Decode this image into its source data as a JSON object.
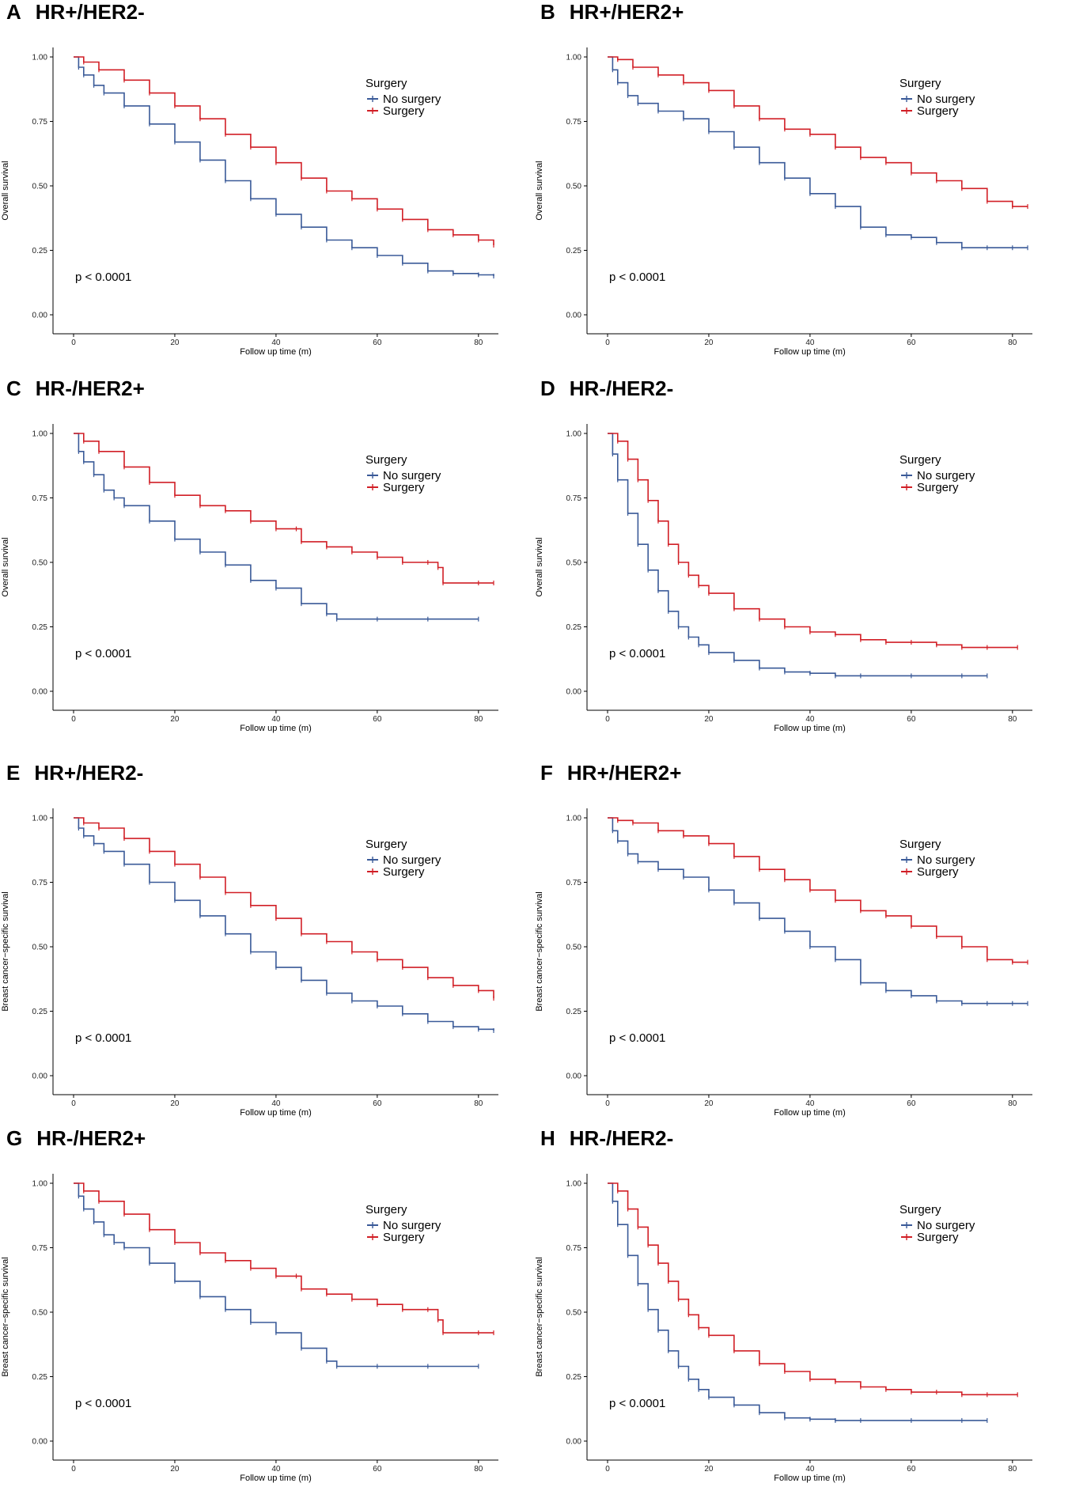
{
  "legend_title": "Surgery",
  "x_axis_label": "Follow up time (m)",
  "colors": {
    "no_surgery": "#3a5a98",
    "surgery": "#d11f26"
  },
  "chart_data": [
    {
      "letter": "A",
      "title": "HR+/HER2-",
      "type": "line",
      "ylabel": "Overall survival",
      "xlabel": "Follow up time (m)",
      "xlim": [
        0,
        83
      ],
      "ylim": [
        0,
        1
      ],
      "xticks": [
        0,
        20,
        40,
        60,
        80
      ],
      "yticks": [
        "0.00",
        "0.25",
        "0.50",
        "0.75",
        "1.00"
      ],
      "pvalue": "p < 0.0001",
      "legend_position": "upper-right",
      "series": [
        {
          "name": "No surgery",
          "x": [
            0,
            1,
            2,
            4,
            6,
            10,
            15,
            20,
            25,
            30,
            35,
            40,
            45,
            50,
            55,
            60,
            65,
            70,
            75,
            80,
            83
          ],
          "y": [
            1.0,
            0.96,
            0.93,
            0.89,
            0.86,
            0.81,
            0.74,
            0.67,
            0.6,
            0.52,
            0.45,
            0.39,
            0.34,
            0.29,
            0.26,
            0.23,
            0.2,
            0.17,
            0.16,
            0.155,
            0.15
          ]
        },
        {
          "name": "Surgery",
          "x": [
            0,
            2,
            5,
            10,
            15,
            20,
            25,
            30,
            35,
            40,
            45,
            50,
            55,
            60,
            65,
            70,
            75,
            80,
            83
          ],
          "y": [
            1.0,
            0.98,
            0.95,
            0.91,
            0.86,
            0.81,
            0.76,
            0.7,
            0.65,
            0.59,
            0.53,
            0.48,
            0.45,
            0.41,
            0.37,
            0.33,
            0.31,
            0.29,
            0.27
          ]
        }
      ]
    },
    {
      "letter": "B",
      "title": "HR+/HER2+",
      "type": "line",
      "ylabel": "Overall survival",
      "xlabel": "Follow up time (m)",
      "xlim": [
        0,
        83
      ],
      "ylim": [
        0,
        1
      ],
      "xticks": [
        0,
        20,
        40,
        60,
        80
      ],
      "yticks": [
        "0.00",
        "0.25",
        "0.50",
        "0.75",
        "1.00"
      ],
      "pvalue": "p < 0.0001",
      "legend_position": "upper-right",
      "series": [
        {
          "name": "No surgery",
          "x": [
            0,
            1,
            2,
            4,
            6,
            10,
            15,
            20,
            25,
            30,
            35,
            40,
            45,
            50,
            55,
            60,
            65,
            70,
            75,
            80,
            83
          ],
          "y": [
            1.0,
            0.95,
            0.9,
            0.85,
            0.82,
            0.79,
            0.76,
            0.71,
            0.65,
            0.59,
            0.53,
            0.47,
            0.42,
            0.34,
            0.31,
            0.3,
            0.28,
            0.26,
            0.26,
            0.26,
            0.26
          ]
        },
        {
          "name": "Surgery",
          "x": [
            0,
            2,
            5,
            10,
            15,
            20,
            25,
            30,
            35,
            40,
            45,
            50,
            55,
            60,
            65,
            70,
            75,
            80,
            83
          ],
          "y": [
            1.0,
            0.99,
            0.96,
            0.93,
            0.9,
            0.87,
            0.81,
            0.76,
            0.72,
            0.7,
            0.65,
            0.61,
            0.59,
            0.55,
            0.52,
            0.49,
            0.44,
            0.42,
            0.42
          ]
        }
      ]
    },
    {
      "letter": "C",
      "title": "HR-/HER2+",
      "type": "line",
      "ylabel": "Overall survival",
      "xlabel": "Follow up time (m)",
      "xlim": [
        0,
        83
      ],
      "ylim": [
        0,
        1
      ],
      "xticks": [
        0,
        20,
        40,
        60,
        80
      ],
      "yticks": [
        "0.00",
        "0.25",
        "0.50",
        "0.75",
        "1.00"
      ],
      "pvalue": "p < 0.0001",
      "legend_position": "upper-right",
      "series": [
        {
          "name": "No surgery",
          "x": [
            0,
            1,
            2,
            4,
            6,
            8,
            10,
            15,
            20,
            25,
            30,
            35,
            40,
            45,
            50,
            52,
            60,
            70,
            80
          ],
          "y": [
            1.0,
            0.93,
            0.89,
            0.84,
            0.78,
            0.75,
            0.72,
            0.66,
            0.59,
            0.54,
            0.49,
            0.43,
            0.4,
            0.34,
            0.3,
            0.28,
            0.28,
            0.28,
            0.28
          ]
        },
        {
          "name": "Surgery",
          "x": [
            0,
            2,
            5,
            10,
            15,
            20,
            25,
            30,
            35,
            40,
            44,
            45,
            50,
            55,
            60,
            65,
            70,
            72,
            73,
            80,
            83
          ],
          "y": [
            1.0,
            0.97,
            0.93,
            0.87,
            0.81,
            0.76,
            0.72,
            0.7,
            0.66,
            0.63,
            0.63,
            0.58,
            0.56,
            0.54,
            0.52,
            0.5,
            0.5,
            0.48,
            0.42,
            0.42,
            0.42
          ]
        }
      ]
    },
    {
      "letter": "D",
      "title": "HR-/HER2-",
      "type": "line",
      "ylabel": "Overall survival",
      "xlabel": "Follow up time (m)",
      "xlim": [
        0,
        83
      ],
      "ylim": [
        0,
        1
      ],
      "xticks": [
        0,
        20,
        40,
        60,
        80
      ],
      "yticks": [
        "0.00",
        "0.25",
        "0.50",
        "0.75",
        "1.00"
      ],
      "pvalue": "p < 0.0001",
      "legend_position": "upper-right",
      "series": [
        {
          "name": "No surgery",
          "x": [
            0,
            1,
            2,
            4,
            6,
            8,
            10,
            12,
            14,
            16,
            18,
            20,
            25,
            30,
            35,
            40,
            45,
            50,
            60,
            70,
            75
          ],
          "y": [
            1.0,
            0.92,
            0.82,
            0.69,
            0.57,
            0.47,
            0.39,
            0.31,
            0.25,
            0.21,
            0.18,
            0.15,
            0.12,
            0.09,
            0.075,
            0.07,
            0.06,
            0.06,
            0.06,
            0.06,
            0.06
          ]
        },
        {
          "name": "Surgery",
          "x": [
            0,
            2,
            4,
            6,
            8,
            10,
            12,
            14,
            16,
            18,
            20,
            25,
            30,
            35,
            40,
            45,
            50,
            55,
            60,
            65,
            70,
            75,
            81
          ],
          "y": [
            1.0,
            0.97,
            0.9,
            0.82,
            0.74,
            0.66,
            0.57,
            0.5,
            0.45,
            0.41,
            0.38,
            0.32,
            0.28,
            0.25,
            0.23,
            0.22,
            0.2,
            0.19,
            0.19,
            0.18,
            0.17,
            0.17,
            0.17
          ]
        }
      ]
    },
    {
      "letter": "E",
      "title": "HR+/HER2-",
      "type": "line",
      "ylabel": "Breast cancer−specific survival",
      "xlabel": "Follow up time (m)",
      "xlim": [
        0,
        83
      ],
      "ylim": [
        0,
        1
      ],
      "xticks": [
        0,
        20,
        40,
        60,
        80
      ],
      "yticks": [
        "0.00",
        "0.25",
        "0.50",
        "0.75",
        "1.00"
      ],
      "pvalue": "p < 0.0001",
      "legend_position": "upper-right",
      "series": [
        {
          "name": "No surgery",
          "x": [
            0,
            1,
            2,
            4,
            6,
            10,
            15,
            20,
            25,
            30,
            35,
            40,
            45,
            50,
            55,
            60,
            65,
            70,
            75,
            80,
            83
          ],
          "y": [
            1.0,
            0.96,
            0.93,
            0.9,
            0.87,
            0.82,
            0.75,
            0.68,
            0.62,
            0.55,
            0.48,
            0.42,
            0.37,
            0.32,
            0.29,
            0.27,
            0.24,
            0.21,
            0.19,
            0.18,
            0.175
          ]
        },
        {
          "name": "Surgery",
          "x": [
            0,
            2,
            5,
            10,
            15,
            20,
            25,
            30,
            35,
            40,
            45,
            50,
            55,
            60,
            65,
            70,
            75,
            80,
            83
          ],
          "y": [
            1.0,
            0.98,
            0.96,
            0.92,
            0.87,
            0.82,
            0.77,
            0.71,
            0.66,
            0.61,
            0.55,
            0.52,
            0.48,
            0.45,
            0.42,
            0.38,
            0.35,
            0.33,
            0.3
          ]
        }
      ]
    },
    {
      "letter": "F",
      "title": "HR+/HER2+",
      "type": "line",
      "ylabel": "Breast cancer−specific survival",
      "xlabel": "Follow up time (m)",
      "xlim": [
        0,
        83
      ],
      "ylim": [
        0,
        1
      ],
      "xticks": [
        0,
        20,
        40,
        60,
        80
      ],
      "yticks": [
        "0.00",
        "0.25",
        "0.50",
        "0.75",
        "1.00"
      ],
      "pvalue": "p < 0.0001",
      "legend_position": "upper-right",
      "series": [
        {
          "name": "No surgery",
          "x": [
            0,
            1,
            2,
            4,
            6,
            10,
            15,
            20,
            25,
            30,
            35,
            40,
            45,
            50,
            55,
            60,
            65,
            70,
            75,
            80,
            83
          ],
          "y": [
            1.0,
            0.95,
            0.91,
            0.86,
            0.83,
            0.8,
            0.77,
            0.72,
            0.67,
            0.61,
            0.56,
            0.5,
            0.45,
            0.36,
            0.33,
            0.31,
            0.29,
            0.28,
            0.28,
            0.28,
            0.28
          ]
        },
        {
          "name": "Surgery",
          "x": [
            0,
            2,
            5,
            10,
            15,
            20,
            25,
            30,
            35,
            40,
            45,
            50,
            55,
            60,
            65,
            70,
            75,
            80,
            83
          ],
          "y": [
            1.0,
            0.99,
            0.98,
            0.95,
            0.93,
            0.9,
            0.85,
            0.8,
            0.76,
            0.72,
            0.68,
            0.64,
            0.62,
            0.58,
            0.54,
            0.5,
            0.45,
            0.44,
            0.44
          ]
        }
      ]
    },
    {
      "letter": "G",
      "title": "HR-/HER2+",
      "type": "line",
      "ylabel": "Breast cancer−specific survival",
      "xlabel": "Follow up time (m)",
      "xlim": [
        0,
        83
      ],
      "ylim": [
        0,
        1
      ],
      "xticks": [
        0,
        20,
        40,
        60,
        80
      ],
      "yticks": [
        "0.00",
        "0.25",
        "0.50",
        "0.75",
        "1.00"
      ],
      "pvalue": "p < 0.0001",
      "legend_position": "upper-right",
      "series": [
        {
          "name": "No surgery",
          "x": [
            0,
            1,
            2,
            4,
            6,
            8,
            10,
            15,
            20,
            25,
            30,
            35,
            40,
            45,
            50,
            52,
            60,
            70,
            80
          ],
          "y": [
            1.0,
            0.95,
            0.9,
            0.85,
            0.8,
            0.77,
            0.75,
            0.69,
            0.62,
            0.56,
            0.51,
            0.46,
            0.42,
            0.36,
            0.31,
            0.29,
            0.29,
            0.29,
            0.29
          ]
        },
        {
          "name": "Surgery",
          "x": [
            0,
            2,
            5,
            10,
            15,
            20,
            25,
            30,
            35,
            40,
            44,
            45,
            50,
            55,
            60,
            65,
            70,
            72,
            73,
            80,
            83
          ],
          "y": [
            1.0,
            0.97,
            0.93,
            0.88,
            0.82,
            0.77,
            0.73,
            0.7,
            0.67,
            0.64,
            0.64,
            0.59,
            0.57,
            0.55,
            0.53,
            0.51,
            0.51,
            0.47,
            0.42,
            0.42,
            0.42
          ]
        }
      ]
    },
    {
      "letter": "H",
      "title": "HR-/HER2-",
      "type": "line",
      "ylabel": "Breast cancer−specific survival",
      "xlabel": "Follow up time (m)",
      "xlim": [
        0,
        83
      ],
      "ylim": [
        0,
        1
      ],
      "xticks": [
        0,
        20,
        40,
        60,
        80
      ],
      "yticks": [
        "0.00",
        "0.25",
        "0.50",
        "0.75",
        "1.00"
      ],
      "pvalue": "p < 0.0001",
      "legend_position": "upper-right",
      "series": [
        {
          "name": "No surgery",
          "x": [
            0,
            1,
            2,
            4,
            6,
            8,
            10,
            12,
            14,
            16,
            18,
            20,
            25,
            30,
            35,
            40,
            45,
            50,
            60,
            70,
            75
          ],
          "y": [
            1.0,
            0.93,
            0.84,
            0.72,
            0.61,
            0.51,
            0.43,
            0.35,
            0.29,
            0.24,
            0.2,
            0.17,
            0.14,
            0.11,
            0.09,
            0.085,
            0.08,
            0.08,
            0.08,
            0.08,
            0.08
          ]
        },
        {
          "name": "Surgery",
          "x": [
            0,
            2,
            4,
            6,
            8,
            10,
            12,
            14,
            16,
            18,
            20,
            25,
            30,
            35,
            40,
            45,
            50,
            55,
            60,
            65,
            70,
            75,
            81
          ],
          "y": [
            1.0,
            0.97,
            0.9,
            0.83,
            0.76,
            0.69,
            0.62,
            0.55,
            0.49,
            0.44,
            0.41,
            0.35,
            0.3,
            0.27,
            0.24,
            0.23,
            0.21,
            0.2,
            0.19,
            0.19,
            0.18,
            0.18,
            0.18
          ]
        }
      ]
    }
  ]
}
